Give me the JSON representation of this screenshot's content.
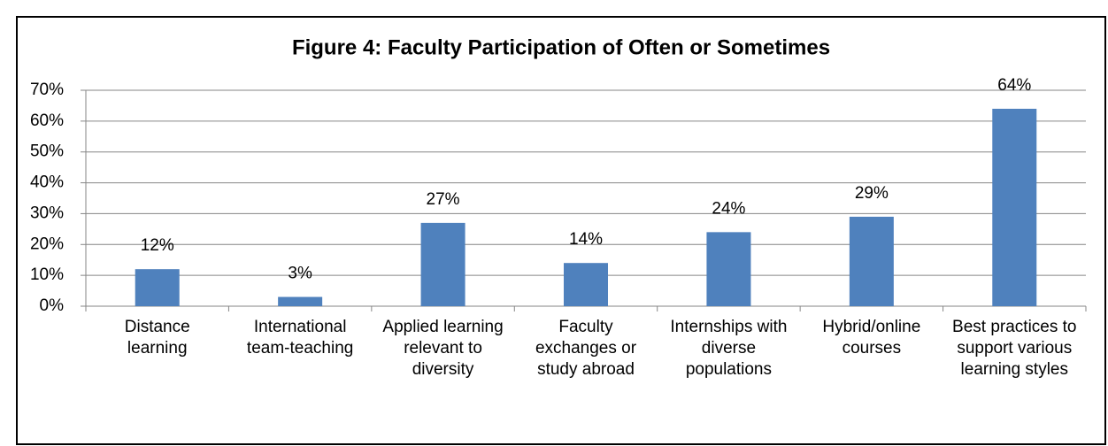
{
  "chart_data": {
    "type": "bar",
    "title": "Figure 4: Faculty Participation of Often or Sometimes",
    "categories": [
      "Distance learning",
      "International team-teaching",
      "Applied learning relevant to diversity",
      "Faculty exchanges or study abroad",
      "Internships with diverse populations",
      "Hybrid/online courses",
      "Best practices to support various learning styles"
    ],
    "values": [
      12,
      3,
      27,
      14,
      24,
      29,
      64
    ],
    "value_labels": [
      "12%",
      "3%",
      "27%",
      "14%",
      "24%",
      "29%",
      "64%"
    ],
    "color": "#4f81bd",
    "ylim": [
      0,
      70
    ],
    "yticks": [
      {
        "value": 0,
        "label": "0%"
      },
      {
        "value": 10,
        "label": "10%"
      },
      {
        "value": 20,
        "label": "20%"
      },
      {
        "value": 30,
        "label": "30%"
      },
      {
        "value": 40,
        "label": "40%"
      },
      {
        "value": 50,
        "label": "50%"
      },
      {
        "value": 60,
        "label": "60%"
      },
      {
        "value": 70,
        "label": "70%"
      }
    ],
    "grid": true
  }
}
